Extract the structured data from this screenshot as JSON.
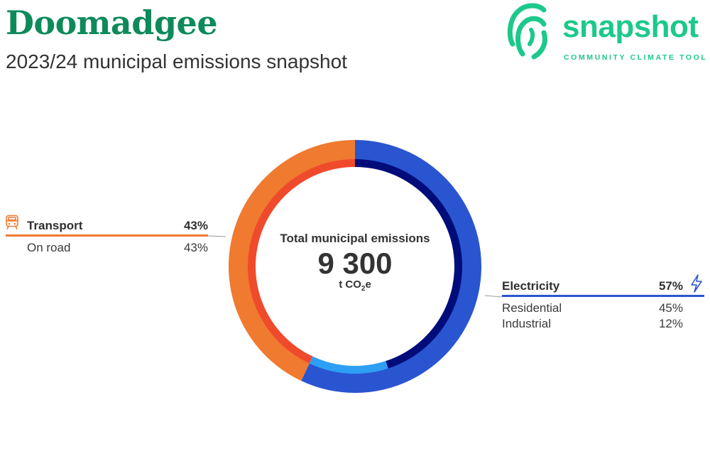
{
  "header": {
    "title": "Doomadgee",
    "subtitle": "2023/24 municipal emissions snapshot"
  },
  "logo": {
    "word": "snapshot",
    "tagline": "COMMUNITY CLIMATE TOOL",
    "icon": "fingerprint-icon",
    "color": "#1cc98a"
  },
  "center": {
    "label": "Total municipal emissions",
    "value": "9 300",
    "unit_prefix": "t CO",
    "unit_sub": "2",
    "unit_suffix": "e"
  },
  "legend": {
    "transport": {
      "label": "Transport",
      "percent": "43%",
      "icon": "train-icon",
      "color": "#ef7a30",
      "items": [
        {
          "label": "On road",
          "percent": "43%"
        }
      ]
    },
    "electricity": {
      "label": "Electricity",
      "percent": "57%",
      "icon": "lightning-bolt-icon",
      "color": "#2a55d0",
      "items": [
        {
          "label": "Residential",
          "percent": "45%"
        },
        {
          "label": "Industrial",
          "percent": "12%"
        }
      ]
    }
  },
  "chart_data": {
    "type": "pie",
    "style": "donut",
    "title": "Total municipal emissions",
    "total": 9300,
    "unit": "t CO2e",
    "outer_ring": [
      {
        "name": "Electricity",
        "value": 57,
        "color": "#2a55d0"
      },
      {
        "name": "Transport",
        "value": 43,
        "color": "#ef7a30"
      }
    ],
    "inner_ring": [
      {
        "name": "Electricity: Residential",
        "value": 45,
        "color": "#000c7a"
      },
      {
        "name": "Electricity: Industrial",
        "value": 12,
        "color": "#2e9ff5"
      },
      {
        "name": "Transport: On road",
        "value": 43,
        "color": "#f04a2c"
      }
    ]
  }
}
